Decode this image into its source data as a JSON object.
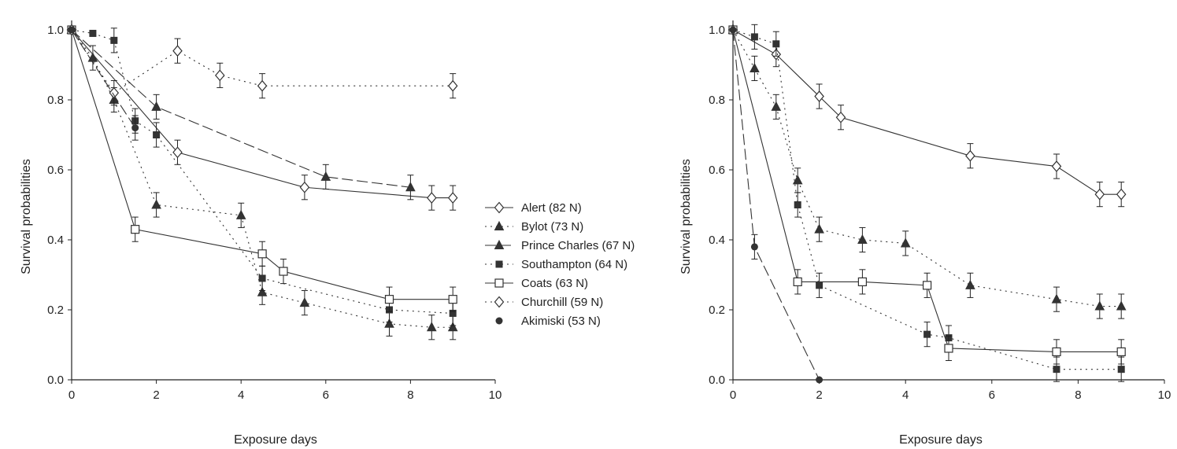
{
  "legend": {
    "placement": "between-panels",
    "entries": [
      "Alert (82 N)",
      "Bylot (73 N)",
      "Prince Charles (67 N)",
      "Southampton (64 N)",
      "Coats (63 N)",
      "Churchill (59 N)",
      "Akimiski (53 N)"
    ]
  },
  "series_styles": [
    {
      "name": "Alert (82 N)",
      "marker": "diamond-open",
      "line": "solid",
      "color": "#333333"
    },
    {
      "name": "Bylot (73 N)",
      "marker": "triangle",
      "line": "dotted",
      "color": "#333333"
    },
    {
      "name": "Prince Charles (67 N)",
      "marker": "triangle",
      "line": "dashed",
      "color": "#333333"
    },
    {
      "name": "Southampton (64 N)",
      "marker": "square",
      "line": "dotted",
      "color": "#333333"
    },
    {
      "name": "Coats (63 N)",
      "marker": "square-open",
      "line": "solid",
      "color": "#333333"
    },
    {
      "name": "Churchill (59 N)",
      "marker": "diamond-open",
      "line": "dotted",
      "color": "#333333"
    },
    {
      "name": "Akimiski (53 N)",
      "marker": "circle",
      "line": "dashed",
      "color": "#333333"
    }
  ],
  "chart_data": [
    {
      "type": "line",
      "xlabel": "Exposure days",
      "ylabel": "Survival probabilities",
      "xlim": [
        0,
        10
      ],
      "ylim": [
        0,
        1
      ],
      "xticks": [
        "0",
        "2",
        "4",
        "6",
        "8",
        "10"
      ],
      "yticks": [
        "0.0",
        "0.2",
        "0.4",
        "0.6",
        "0.8",
        "1.0"
      ],
      "grid": false,
      "series": [
        {
          "name": "Alert (82 N)",
          "points": [
            [
              0,
              1.0
            ],
            [
              2.5,
              0.65
            ],
            [
              5.5,
              0.55
            ],
            [
              8.5,
              0.52
            ],
            [
              9,
              0.52
            ]
          ]
        },
        {
          "name": "Bylot (73 N)",
          "points": [
            [
              0,
              1.0
            ],
            [
              0.5,
              0.92
            ],
            [
              1,
              0.8
            ],
            [
              2,
              0.5
            ],
            [
              4,
              0.47
            ],
            [
              4.5,
              0.25
            ],
            [
              5.5,
              0.22
            ],
            [
              7.5,
              0.16
            ],
            [
              8.5,
              0.15
            ],
            [
              9,
              0.15
            ]
          ]
        },
        {
          "name": "Prince Charles (67 N)",
          "points": [
            [
              0,
              1.0
            ],
            [
              2,
              0.78
            ],
            [
              6,
              0.58
            ],
            [
              8,
              0.55
            ]
          ]
        },
        {
          "name": "Southampton (64 N)",
          "points": [
            [
              0,
              1.0
            ],
            [
              0.5,
              0.99
            ],
            [
              1,
              0.97
            ],
            [
              1.5,
              0.74
            ],
            [
              2,
              0.7
            ],
            [
              4.5,
              0.29
            ],
            [
              7.5,
              0.2
            ],
            [
              9,
              0.19
            ]
          ]
        },
        {
          "name": "Coats (63 N)",
          "points": [
            [
              0,
              1.0
            ],
            [
              1.5,
              0.43
            ],
            [
              4.5,
              0.36
            ],
            [
              5,
              0.31
            ],
            [
              7.5,
              0.23
            ],
            [
              9,
              0.23
            ]
          ]
        },
        {
          "name": "Churchill (59 N)",
          "points": [
            [
              0,
              1.0
            ],
            [
              1,
              0.82
            ],
            [
              2.5,
              0.94
            ],
            [
              3.5,
              0.87
            ],
            [
              4.5,
              0.84
            ],
            [
              9,
              0.84
            ]
          ]
        },
        {
          "name": "Akimiski (53 N)",
          "points": [
            [
              0,
              1.0
            ],
            [
              1.5,
              0.72
            ]
          ]
        }
      ]
    },
    {
      "type": "line",
      "xlabel": "Exposure days",
      "ylabel": "Survival probabilities",
      "xlim": [
        0,
        10
      ],
      "ylim": [
        0,
        1
      ],
      "xticks": [
        "0",
        "2",
        "4",
        "6",
        "8",
        "10"
      ],
      "yticks": [
        "0.0",
        "0.2",
        "0.4",
        "0.6",
        "0.8",
        "1.0"
      ],
      "grid": false,
      "series": [
        {
          "name": "Alert (82 N)",
          "points": [
            [
              0,
              1.0
            ],
            [
              1,
              0.93
            ],
            [
              2,
              0.81
            ],
            [
              2.5,
              0.75
            ],
            [
              5.5,
              0.64
            ],
            [
              7.5,
              0.61
            ],
            [
              8.5,
              0.53
            ],
            [
              9,
              0.53
            ]
          ]
        },
        {
          "name": "Bylot (73 N)",
          "points": [
            [
              0,
              1.0
            ],
            [
              0.5,
              0.89
            ],
            [
              1,
              0.78
            ],
            [
              1.5,
              0.57
            ],
            [
              2,
              0.43
            ],
            [
              3,
              0.4
            ],
            [
              4,
              0.39
            ],
            [
              5.5,
              0.27
            ],
            [
              7.5,
              0.23
            ],
            [
              8.5,
              0.21
            ],
            [
              9,
              0.21
            ]
          ]
        },
        {
          "name": "Southampton (64 N)",
          "points": [
            [
              0,
              1.0
            ],
            [
              0.5,
              0.98
            ],
            [
              1,
              0.96
            ],
            [
              1.5,
              0.5
            ],
            [
              2,
              0.27
            ],
            [
              4.5,
              0.13
            ],
            [
              5,
              0.12
            ],
            [
              7.5,
              0.03
            ],
            [
              9,
              0.03
            ]
          ]
        },
        {
          "name": "Coats (63 N)",
          "points": [
            [
              0,
              1.0
            ],
            [
              1.5,
              0.28
            ],
            [
              3,
              0.28
            ],
            [
              4.5,
              0.27
            ],
            [
              5,
              0.09
            ],
            [
              7.5,
              0.08
            ],
            [
              9,
              0.08
            ]
          ]
        },
        {
          "name": "Akimiski (53 N)",
          "points": [
            [
              0,
              1.0
            ],
            [
              0.5,
              0.38
            ],
            [
              2,
              0.0
            ]
          ]
        }
      ]
    }
  ]
}
